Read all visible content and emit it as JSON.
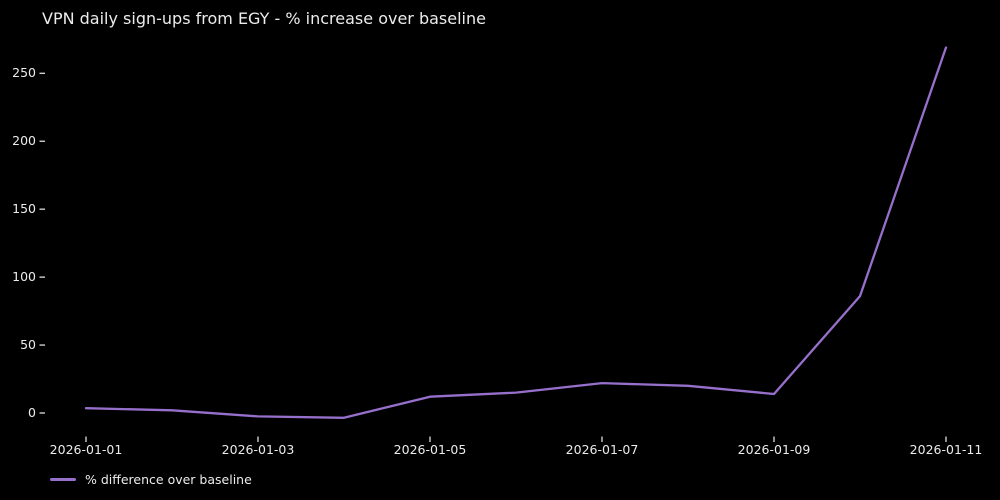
{
  "chart_data": {
    "type": "line",
    "title": "VPN daily sign-ups from EGY - % increase over baseline",
    "xlabel": "",
    "ylabel": "",
    "x": [
      "2026-01-01",
      "2026-01-02",
      "2026-01-03",
      "2026-01-04",
      "2026-01-05",
      "2026-01-06",
      "2026-01-07",
      "2026-01-08",
      "2026-01-09",
      "2026-01-10",
      "2026-01-11"
    ],
    "series": [
      {
        "name": "% difference over baseline",
        "values": [
          3.5,
          2,
          -2.5,
          -3.5,
          12,
          15,
          22,
          20,
          14,
          86,
          269
        ]
      }
    ],
    "yticks": [
      0,
      50,
      100,
      150,
      200,
      250
    ],
    "ytick_labels": [
      "0",
      "50",
      "100",
      "150",
      "200",
      "250"
    ],
    "xtick_labels": [
      "2026-01-01",
      "2026-01-03",
      "2026-01-05",
      "2026-01-07",
      "2026-01-09",
      "2026-01-11"
    ],
    "ylim": [
      -17.5,
      281.5
    ],
    "grid": false,
    "legend_position": "lower-left-outside",
    "colors": {
      "background": "#000000",
      "text": "#ececec",
      "line": "#9770cc",
      "tick_mark": "#dddddd"
    }
  }
}
